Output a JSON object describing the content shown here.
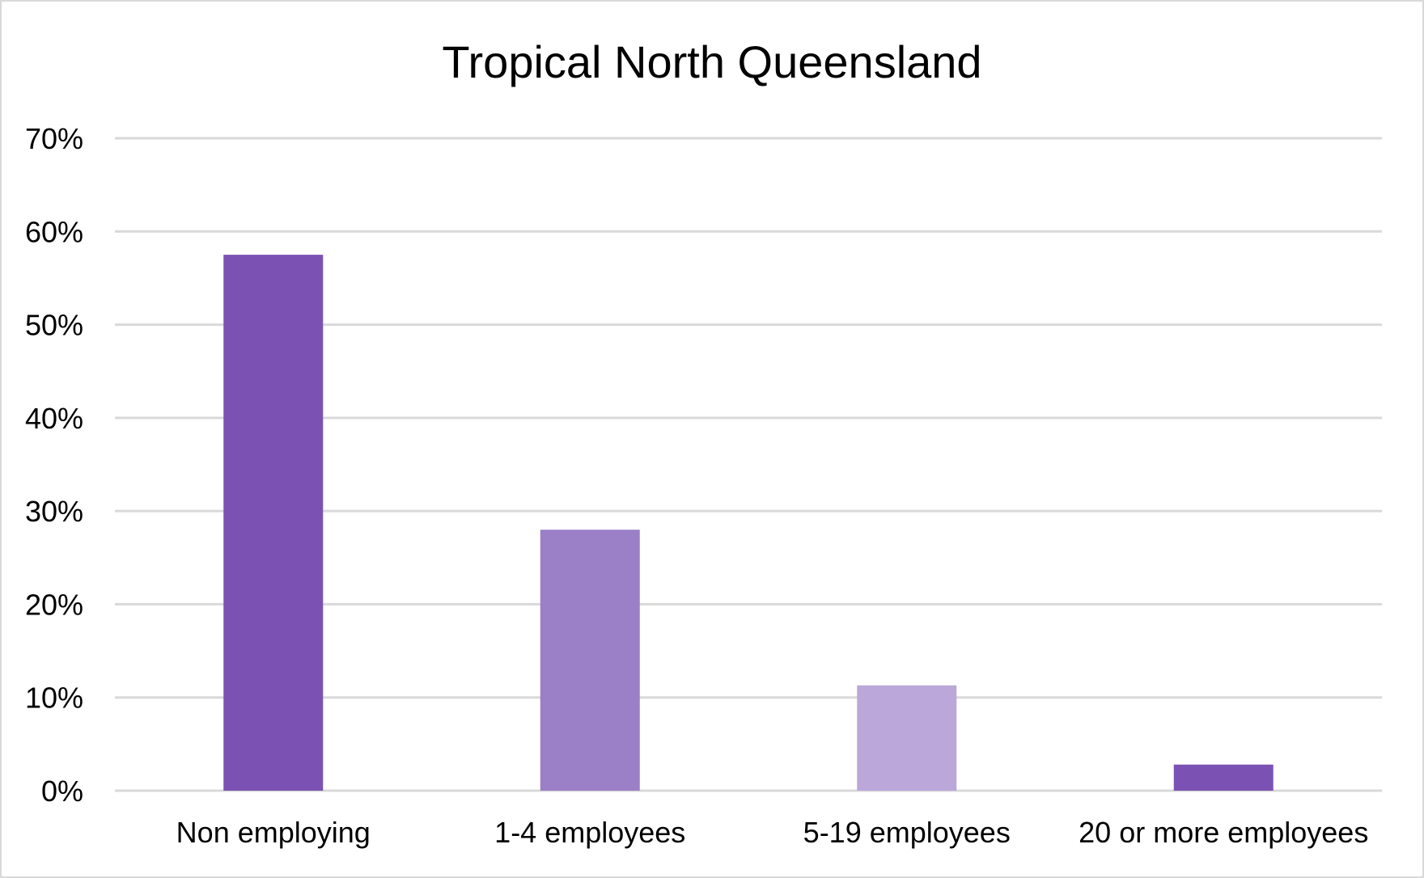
{
  "chart_data": {
    "type": "bar",
    "title": "Tropical North Queensland",
    "xlabel": "",
    "ylabel": "",
    "categories": [
      "Non employing",
      "1-4 employees",
      "5-19 employees",
      "20 or more employees"
    ],
    "values": [
      0.575,
      0.28,
      0.113,
      0.028
    ],
    "bar_colors": [
      "#7b52b3",
      "#9b7fc7",
      "#bba7da",
      "#7b52b3"
    ],
    "ylim": [
      0,
      0.7
    ],
    "yticks": [
      0,
      0.1,
      0.2,
      0.3,
      0.4,
      0.5,
      0.6,
      0.7
    ],
    "ytick_labels": [
      "0%",
      "10%",
      "20%",
      "30%",
      "40%",
      "50%",
      "60%",
      "70%"
    ],
    "grid": true,
    "legend": "none"
  }
}
